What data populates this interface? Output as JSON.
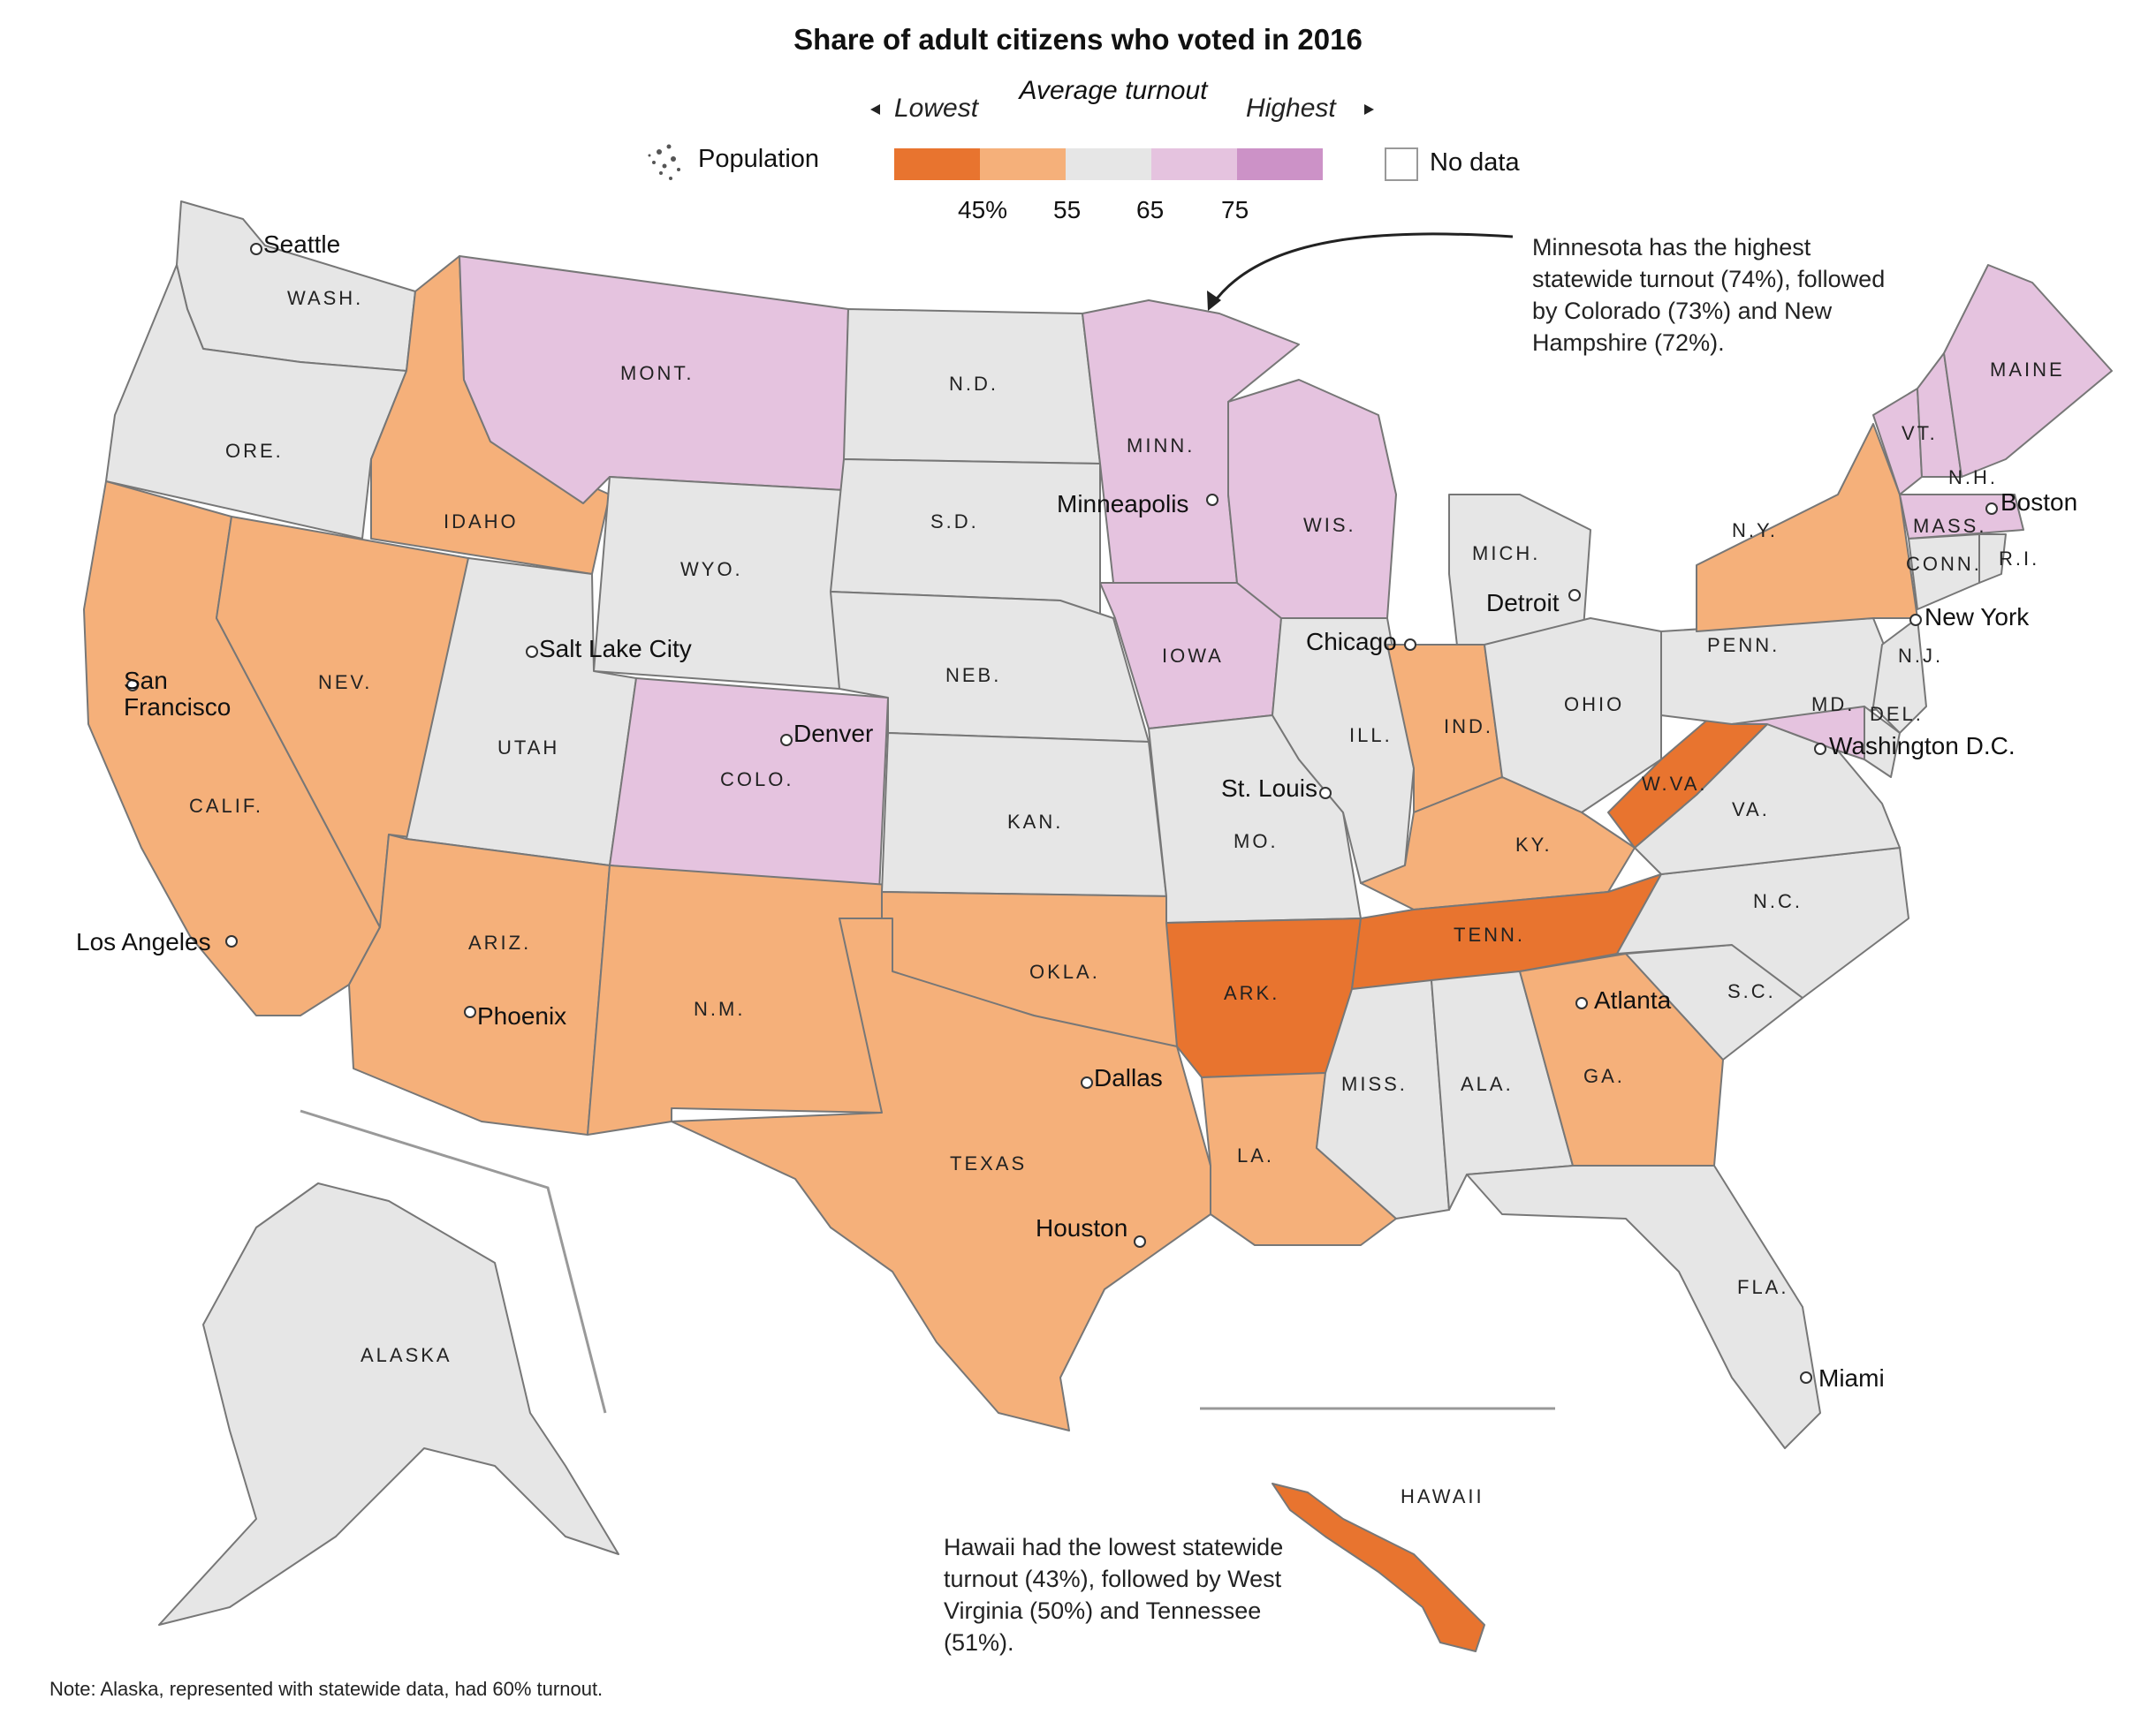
{
  "title": "Share of adult citizens who voted in 2016",
  "legend": {
    "lowest_label": "Lowest",
    "average_label": "Average turnout",
    "highest_label": "Highest",
    "population_label": "Population",
    "no_data_label": "No data",
    "ticks": [
      "45%",
      "55",
      "65",
      "75"
    ],
    "bins": [
      {
        "name": "lowest",
        "color": "#e8742f"
      },
      {
        "name": "low",
        "color": "#f5b07a"
      },
      {
        "name": "average",
        "color": "#e6e6e6"
      },
      {
        "name": "high",
        "color": "#e5c3df"
      },
      {
        "name": "highest",
        "color": "#cc92c7"
      }
    ],
    "no_data_color": "#ffffff"
  },
  "states": {
    "wash": "WASH.",
    "ore": "ORE.",
    "calif": "CALIF.",
    "nev": "NEV.",
    "idaho": "IDAHO",
    "mont": "MONT.",
    "wyo": "WYO.",
    "utah": "UTAH",
    "ariz": "ARIZ.",
    "colo": "COLO.",
    "nm": "N.M.",
    "nd": "N.D.",
    "sd": "S.D.",
    "neb": "NEB.",
    "kan": "KAN.",
    "okla": "OKLA.",
    "texas": "TEXAS",
    "minn": "MINN.",
    "iowa": "IOWA",
    "mo": "MO.",
    "ark": "ARK.",
    "la": "LA.",
    "wis": "WIS.",
    "ill": "ILL.",
    "mich": "MICH.",
    "ind": "IND.",
    "ohio": "OHIO",
    "ky": "KY.",
    "tenn": "TENN.",
    "miss": "MISS.",
    "ala": "ALA.",
    "ga": "GA.",
    "fla": "FLA.",
    "sc": "S.C.",
    "nc": "N.C.",
    "va": "VA.",
    "wva": "W.VA.",
    "penn": "PENN.",
    "ny": "N.Y.",
    "md": "MD.",
    "del": "DEL.",
    "nj": "N.J.",
    "conn": "CONN.",
    "ri": "R.I.",
    "mass": "MASS.",
    "vt": "VT.",
    "nh": "N.H.",
    "maine": "MAINE",
    "alaska": "ALASKA",
    "hawaii": "HAWAII"
  },
  "cities": {
    "seattle": "Seattle",
    "sf": "San\nFrancisco",
    "la": "Los Angeles",
    "phoenix": "Phoenix",
    "slc": "Salt Lake City",
    "denver": "Denver",
    "minneapolis": "Minneapolis",
    "chicago": "Chicago",
    "stlouis": "St. Louis",
    "dallas": "Dallas",
    "houston": "Houston",
    "detroit": "Detroit",
    "atlanta": "Atlanta",
    "miami": "Miami",
    "boston": "Boston",
    "newyork": "New York",
    "dc": "Washington D.C."
  },
  "annotations": {
    "highest": "Minnesota has the highest statewide turnout (74%), followed by Colorado (73%) and New Hampshire (72%).",
    "lowest": "Hawaii had the lowest statewide turnout (43%), followed by West Virginia (50%) and Tennessee (51%)."
  },
  "note": "Note: Alaska, represented with statewide data, had 60% turnout.",
  "state_fill_levels": {
    "wa": 2,
    "or": 2,
    "ca": 1,
    "nv": 1,
    "id": 1,
    "mt": 3,
    "wy": 2,
    "ut": 2,
    "az": 1,
    "co": 3,
    "nm": 1,
    "nd": 2,
    "sd": 2,
    "ne": 2,
    "ks": 2,
    "ok": 1,
    "tx": 1,
    "mn": 3,
    "ia": 3,
    "mo": 2,
    "ar": 0,
    "la": 1,
    "wi": 3,
    "il": 2,
    "mi": 2,
    "in": 1,
    "oh": 2,
    "ky": 1,
    "tn": 0,
    "ms": 2,
    "al": 2,
    "ga": 1,
    "fl": 2,
    "sc": 2,
    "nc": 2,
    "va": 2,
    "wv": 0,
    "pa": 2,
    "ny": 1,
    "vt": 3,
    "nh": 3,
    "me": 3,
    "ma": 3,
    "ct": 2,
    "ri": 2,
    "nj": 2,
    "de": 2,
    "md": 3,
    "ak": 2,
    "hi": 0
  }
}
